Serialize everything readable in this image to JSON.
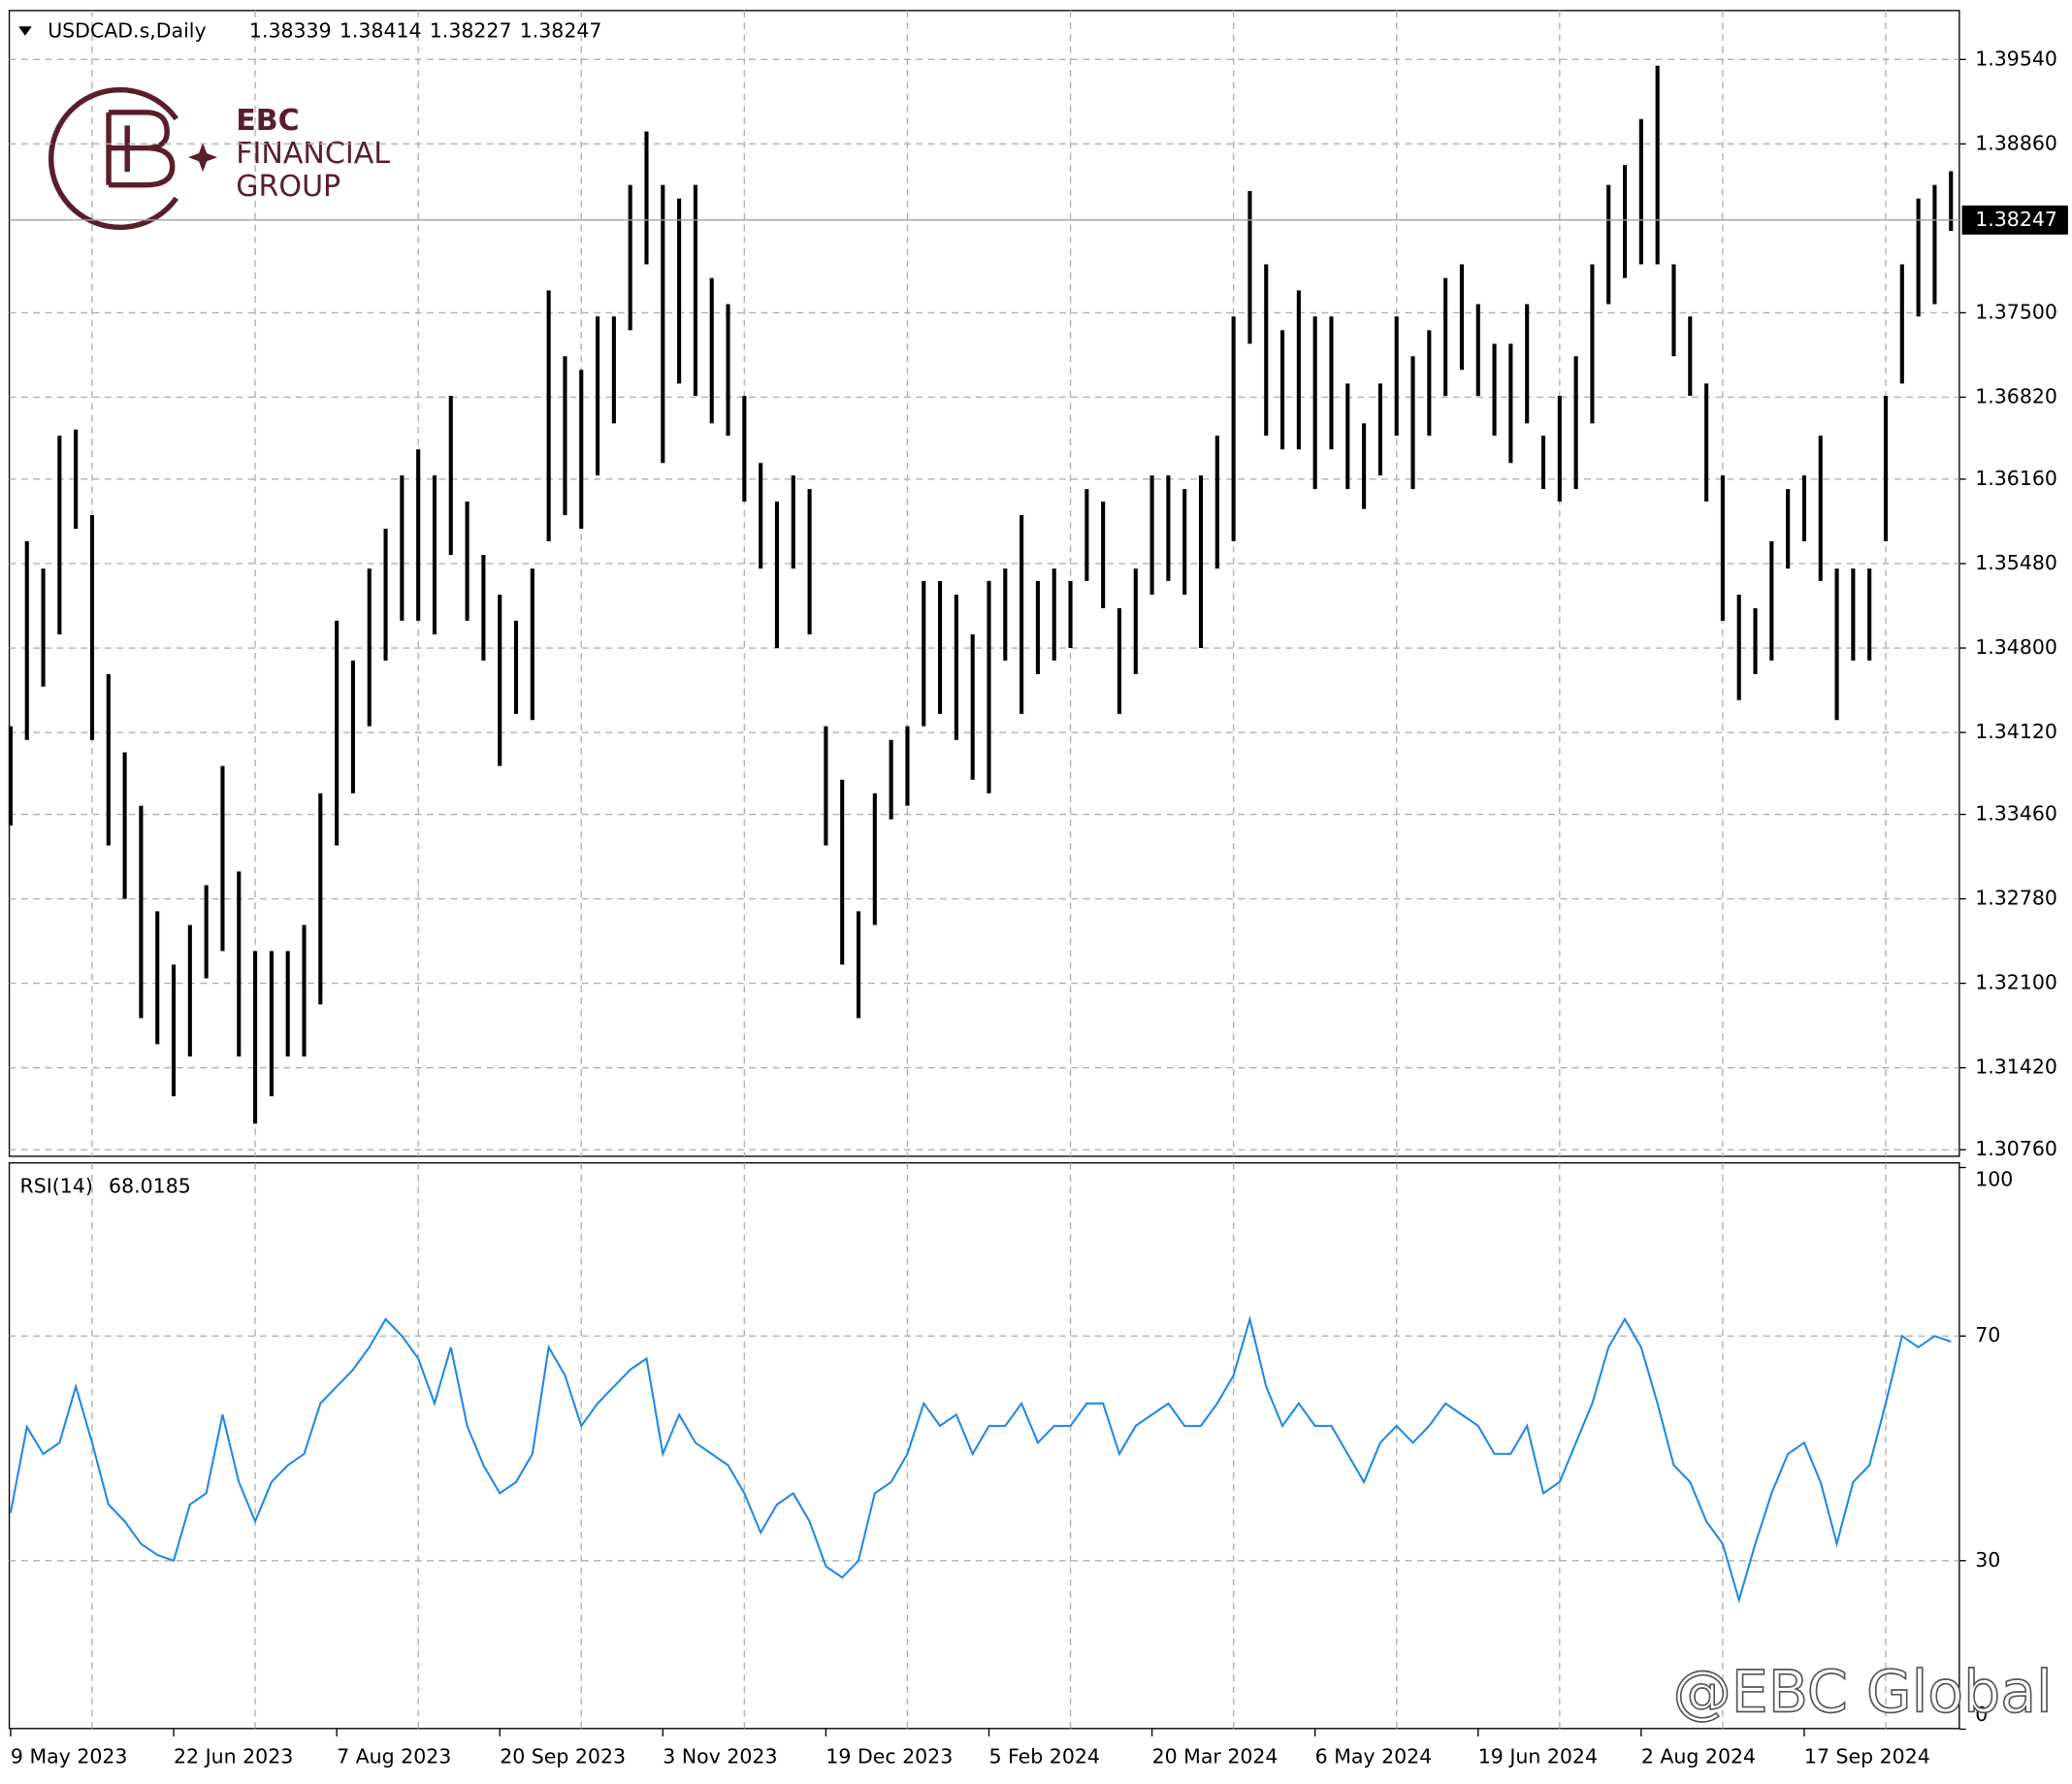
{
  "header": {
    "symbol": "USDCAD.s,Daily",
    "ohlc": [
      1.38339,
      1.38414,
      1.38227,
      1.38247
    ]
  },
  "logo": {
    "line1": "EBC",
    "line2": "FINANCIAL",
    "line3": "GROUP"
  },
  "watermark": "@EBC Global",
  "chart_data": [
    {
      "type": "ohlc",
      "color": "#000000",
      "grid": true,
      "categories": [
        "9 May 2023",
        null,
        null,
        null,
        null,
        null,
        null,
        null,
        null,
        null,
        "22 Jun 2023",
        null,
        null,
        null,
        null,
        null,
        null,
        null,
        null,
        null,
        "7 Aug 2023",
        null,
        null,
        null,
        null,
        null,
        null,
        null,
        null,
        null,
        "20 Sep 2023",
        null,
        null,
        null,
        null,
        null,
        null,
        null,
        null,
        null,
        "3 Nov 2023",
        null,
        null,
        null,
        null,
        null,
        null,
        null,
        null,
        null,
        "19 Dec 2023",
        null,
        null,
        null,
        null,
        null,
        null,
        null,
        null,
        null,
        "5 Feb 2024",
        null,
        null,
        null,
        null,
        null,
        null,
        null,
        null,
        null,
        "20 Mar 2024",
        null,
        null,
        null,
        null,
        null,
        null,
        null,
        null,
        null,
        "6 May 2024",
        null,
        null,
        null,
        null,
        null,
        null,
        null,
        null,
        null,
        "19 Jun 2024",
        null,
        null,
        null,
        null,
        null,
        null,
        null,
        null,
        null,
        "2 Aug 2024",
        null,
        null,
        null,
        null,
        null,
        null,
        null,
        null,
        null,
        "17 Sep 2024",
        null,
        null,
        null,
        null,
        null,
        null,
        null,
        null,
        null
      ],
      "high": [
        1.3417,
        1.3566,
        1.3544,
        1.3651,
        1.3656,
        1.3587,
        1.3459,
        1.3396,
        1.3353,
        1.3268,
        1.3225,
        1.3257,
        1.3289,
        1.3385,
        1.33,
        1.3236,
        1.3236,
        1.3236,
        1.3257,
        1.3363,
        1.3502,
        1.347,
        1.3544,
        1.3576,
        1.3619,
        1.364,
        1.3619,
        1.3683,
        1.3598,
        1.3555,
        1.3523,
        1.3502,
        1.3544,
        1.3768,
        1.3715,
        1.3704,
        1.3747,
        1.3747,
        1.3853,
        1.3896,
        1.3853,
        1.3842,
        1.3853,
        1.3778,
        1.3757,
        1.3683,
        1.3629,
        1.3598,
        1.3619,
        1.3608,
        1.3417,
        1.3374,
        1.3268,
        1.3363,
        1.3406,
        1.3417,
        1.3534,
        1.3534,
        1.3523,
        1.3491,
        1.3534,
        1.3544,
        1.3587,
        1.3534,
        1.3544,
        1.3534,
        1.3608,
        1.3598,
        1.3512,
        1.3544,
        1.3619,
        1.3619,
        1.3608,
        1.3619,
        1.3651,
        1.3747,
        1.3848,
        1.3789,
        1.3736,
        1.3768,
        1.3747,
        1.3747,
        1.3693,
        1.3661,
        1.3693,
        1.3747,
        1.3715,
        1.3736,
        1.3778,
        1.3789,
        1.3757,
        1.3725,
        1.3725,
        1.3757,
        1.3651,
        1.3683,
        1.3715,
        1.3789,
        1.3853,
        1.3869,
        1.3906,
        1.3949,
        1.3789,
        1.3747,
        1.3693,
        1.3619,
        1.3523,
        1.3512,
        1.3566,
        1.3608,
        1.3619,
        1.3651,
        1.3544,
        1.3544,
        1.3544,
        1.3683,
        1.3789,
        1.3842,
        1.3853,
        1.3864
      ],
      "low": [
        1.3337,
        1.3406,
        1.3449,
        1.3491,
        1.3576,
        1.3406,
        1.3321,
        1.3278,
        1.3182,
        1.3161,
        1.3119,
        1.3151,
        1.3214,
        1.3236,
        1.3151,
        1.3097,
        1.3119,
        1.3151,
        1.3151,
        1.3193,
        1.3321,
        1.3363,
        1.3417,
        1.347,
        1.3502,
        1.3502,
        1.3491,
        1.3555,
        1.3502,
        1.347,
        1.3385,
        1.3427,
        1.3422,
        1.3566,
        1.3587,
        1.3576,
        1.3619,
        1.3661,
        1.3736,
        1.3789,
        1.3629,
        1.3693,
        1.3683,
        1.3661,
        1.3651,
        1.3598,
        1.3544,
        1.348,
        1.3544,
        1.3491,
        1.3321,
        1.3225,
        1.3182,
        1.3257,
        1.3342,
        1.3353,
        1.3417,
        1.3427,
        1.3406,
        1.3374,
        1.3363,
        1.347,
        1.3427,
        1.3459,
        1.347,
        1.348,
        1.3534,
        1.3512,
        1.3427,
        1.3459,
        1.3523,
        1.3534,
        1.3523,
        1.348,
        1.3544,
        1.3566,
        1.3725,
        1.3651,
        1.364,
        1.364,
        1.3608,
        1.364,
        1.3608,
        1.3592,
        1.3619,
        1.3651,
        1.3608,
        1.3651,
        1.3683,
        1.3704,
        1.3683,
        1.3651,
        1.3629,
        1.3661,
        1.3608,
        1.3598,
        1.3608,
        1.3661,
        1.3757,
        1.3778,
        1.3789,
        1.3789,
        1.3715,
        1.3683,
        1.3598,
        1.3502,
        1.3438,
        1.3459,
        1.347,
        1.3544,
        1.3566,
        1.3534,
        1.3422,
        1.347,
        1.347,
        1.3566,
        1.3693,
        1.3747,
        1.3757,
        1.3816
      ],
      "ylim": [
        1.3071,
        1.3993
      ],
      "yticks": [
        {
          "value": 1.3076,
          "label": "1.30760"
        },
        {
          "value": 1.3142,
          "label": "1.31420"
        },
        {
          "value": 1.321,
          "label": "1.32100"
        },
        {
          "value": 1.3278,
          "label": "1.32780"
        },
        {
          "value": 1.3346,
          "label": "1.33460"
        },
        {
          "value": 1.3412,
          "label": "1.34120"
        },
        {
          "value": 1.348,
          "label": "1.34800"
        },
        {
          "value": 1.3548,
          "label": "1.35480"
        },
        {
          "value": 1.3616,
          "label": "1.36160"
        },
        {
          "value": 1.3682,
          "label": "1.36820"
        },
        {
          "value": 1.375,
          "label": "1.37500"
        },
        {
          "value": 1.3886,
          "label": "1.38860"
        },
        {
          "value": 1.3954,
          "label": "1.39540"
        }
      ],
      "last_price": 1.38247
    },
    {
      "type": "line",
      "title": "RSI(14)",
      "title_value": 68.0185,
      "color": "#1e88e5",
      "values": [
        38.5,
        53.8,
        49,
        51,
        61,
        51,
        40,
        37,
        33,
        31,
        30,
        40,
        42,
        56,
        44,
        37,
        44,
        47,
        49,
        58,
        61,
        64,
        68,
        73,
        70,
        66,
        58,
        68,
        54,
        47,
        42,
        44,
        49,
        68,
        63,
        54,
        58,
        61,
        64,
        66,
        49,
        56,
        51,
        49,
        47,
        42,
        35,
        40,
        42,
        37,
        29,
        27,
        30,
        42,
        44,
        49,
        58,
        54,
        56,
        49,
        54,
        54,
        58,
        51,
        54,
        54,
        58,
        58,
        49,
        54,
        56,
        58,
        54,
        54,
        58,
        63,
        73,
        61,
        54,
        58,
        54,
        54,
        49,
        44,
        51,
        54,
        51,
        54,
        58,
        56,
        54,
        49,
        49,
        54,
        42,
        44,
        51,
        58,
        68,
        73,
        68,
        58,
        47,
        44,
        37,
        33,
        23,
        33,
        42,
        49,
        51,
        44,
        33,
        44,
        47,
        58,
        70,
        68,
        70,
        69
      ],
      "ylim": [
        0,
        100
      ],
      "yticks": [
        0,
        30,
        70,
        100
      ]
    }
  ]
}
